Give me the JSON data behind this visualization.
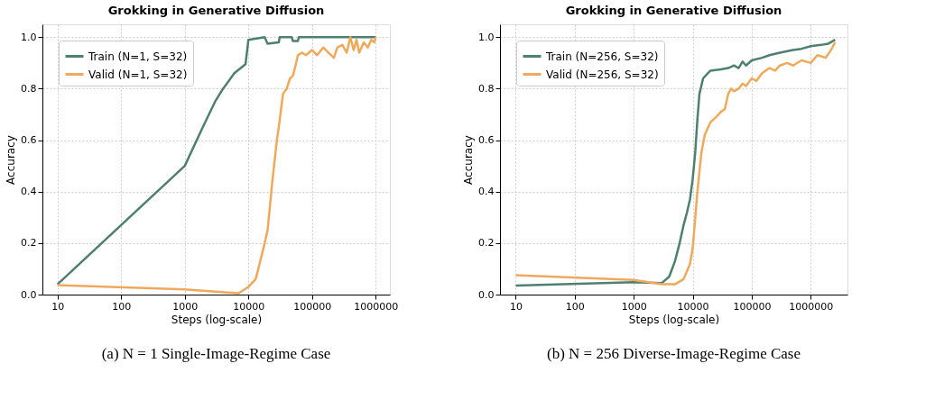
{
  "chart_data": [
    {
      "type": "line",
      "title": "Grokking in Generative Diffusion",
      "xlabel": "Steps (log-scale)",
      "ylabel": "Accuracy",
      "log": "x",
      "grid": true,
      "legend": "top left",
      "line_style": "solid",
      "marker": "none",
      "xlim": [
        5.8,
        1670000
      ],
      "xticks": [
        10,
        100,
        1000,
        10000,
        100000,
        1000000
      ],
      "ylim": [
        0,
        1.05
      ],
      "yticks": [
        {
          "value": 0,
          "label": "0.0"
        },
        0.2,
        0.4,
        0.6,
        0.8,
        {
          "value": 1,
          "label": "1.0"
        }
      ],
      "annotations": [
        "(a) N = 1 Single-Image-Regime Case"
      ],
      "series": [
        {
          "name": "Train (N=1, S=32)",
          "color": "#4e8070",
          "x": [
            10,
            1000,
            2000,
            3000,
            4000,
            6000,
            9000,
            10000,
            18000,
            20000,
            30000,
            31000,
            48000,
            50000,
            60000,
            62000,
            1000000
          ],
          "values": [
            0.04,
            0.5,
            0.66,
            0.75,
            0.8,
            0.86,
            0.895,
            0.99,
            1.0,
            0.975,
            0.98,
            1.0,
            1.0,
            0.985,
            0.985,
            1.0,
            1.0
          ]
        },
        {
          "name": "Valid (N=1, S=32)",
          "color": "#f0a95a",
          "x": [
            10,
            1000,
            7000,
            10000,
            13000,
            15000,
            18000,
            20000,
            24000,
            28000,
            30000,
            35000,
            40000,
            45000,
            50000,
            55000,
            60000,
            70000,
            80000,
            100000,
            120000,
            150000,
            180000,
            220000,
            250000,
            300000,
            350000,
            400000,
            450000,
            500000,
            550000,
            650000,
            750000,
            850000,
            950000,
            1000000
          ],
          "values": [
            0.037,
            0.02,
            0.005,
            0.03,
            0.06,
            0.12,
            0.2,
            0.25,
            0.45,
            0.6,
            0.65,
            0.78,
            0.8,
            0.84,
            0.85,
            0.89,
            0.93,
            0.94,
            0.93,
            0.95,
            0.93,
            0.96,
            0.94,
            0.92,
            0.96,
            0.97,
            0.94,
            1.0,
            0.95,
            0.99,
            0.94,
            0.98,
            0.96,
            0.99,
            0.98,
            1.0
          ]
        }
      ]
    },
    {
      "type": "line",
      "title": "Grokking in Generative Diffusion",
      "xlabel": "Steps (log-scale)",
      "ylabel": "Accuracy",
      "log": "x",
      "grid": true,
      "legend": "top left",
      "line_style": "solid",
      "marker": "none",
      "xlim": [
        5.4,
        4200000
      ],
      "xticks": [
        10,
        100,
        1000,
        10000,
        100000,
        1000000
      ],
      "ylim": [
        0,
        1.05
      ],
      "yticks": [
        {
          "value": 0,
          "label": "0.0"
        },
        0.2,
        0.4,
        0.6,
        0.8,
        {
          "value": 1,
          "label": "1.0"
        }
      ],
      "annotations": [
        "(b) N = 256 Diverse-Image-Regime Case"
      ],
      "series": [
        {
          "name": "Train (N=256, S=32)",
          "color": "#4e8070",
          "x": [
            10,
            1000,
            3000,
            4000,
            5000,
            6000,
            7000,
            8000,
            9000,
            10000,
            11000,
            12000,
            13000,
            15000,
            18000,
            20000,
            30000,
            40000,
            50000,
            60000,
            70000,
            80000,
            100000,
            150000,
            200000,
            300000,
            500000,
            700000,
            1000000,
            1500000,
            2000000,
            2600000
          ],
          "values": [
            0.035,
            0.048,
            0.045,
            0.07,
            0.13,
            0.2,
            0.27,
            0.32,
            0.37,
            0.45,
            0.55,
            0.68,
            0.78,
            0.84,
            0.86,
            0.87,
            0.875,
            0.88,
            0.89,
            0.88,
            0.905,
            0.89,
            0.91,
            0.92,
            0.93,
            0.94,
            0.95,
            0.955,
            0.965,
            0.97,
            0.975,
            0.99
          ]
        },
        {
          "name": "Valid (N=256, S=32)",
          "color": "#f0a95a",
          "x": [
            10,
            1000,
            3000,
            5000,
            7000,
            9000,
            10000,
            12000,
            14000,
            16000,
            20000,
            25000,
            30000,
            35000,
            40000,
            45000,
            50000,
            60000,
            70000,
            80000,
            100000,
            120000,
            150000,
            200000,
            250000,
            300000,
            400000,
            500000,
            700000,
            1000000,
            1300000,
            1800000,
            2200000,
            2600000
          ],
          "values": [
            0.075,
            0.057,
            0.04,
            0.04,
            0.06,
            0.12,
            0.18,
            0.4,
            0.55,
            0.62,
            0.67,
            0.69,
            0.71,
            0.72,
            0.78,
            0.8,
            0.79,
            0.8,
            0.82,
            0.81,
            0.84,
            0.83,
            0.86,
            0.88,
            0.87,
            0.89,
            0.9,
            0.89,
            0.91,
            0.9,
            0.93,
            0.92,
            0.95,
            0.98
          ]
        }
      ]
    }
  ]
}
